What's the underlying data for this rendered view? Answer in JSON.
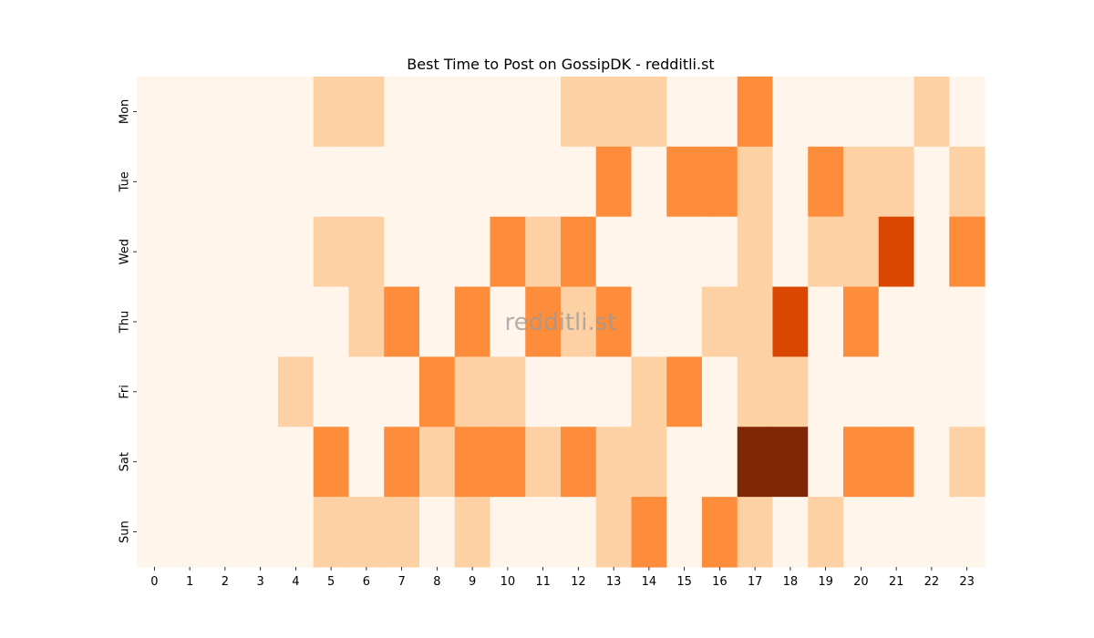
{
  "chart_data": {
    "type": "heatmap",
    "title": "Best Time to Post on GossipDK - redditli.st",
    "watermark": "redditli.st",
    "x_labels": [
      "0",
      "1",
      "2",
      "3",
      "4",
      "5",
      "6",
      "7",
      "8",
      "9",
      "10",
      "11",
      "12",
      "13",
      "14",
      "15",
      "16",
      "17",
      "18",
      "19",
      "20",
      "21",
      "22",
      "23"
    ],
    "y_labels": [
      "Mon",
      "Tue",
      "Wed",
      "Thu",
      "Fri",
      "Sat",
      "Sun"
    ],
    "values": [
      [
        0,
        0,
        0,
        0,
        0,
        1,
        1,
        0,
        0,
        0,
        0,
        0,
        1,
        1,
        1,
        0,
        0,
        2,
        0,
        0,
        0,
        0,
        1,
        0
      ],
      [
        0,
        0,
        0,
        0,
        0,
        0,
        0,
        0,
        0,
        0,
        0,
        0,
        0,
        2,
        0,
        2,
        2,
        1,
        0,
        2,
        1,
        1,
        0,
        1
      ],
      [
        0,
        0,
        0,
        0,
        0,
        1,
        1,
        0,
        0,
        0,
        2,
        1,
        2,
        0,
        0,
        0,
        0,
        1,
        0,
        1,
        1,
        3,
        0,
        2
      ],
      [
        0,
        0,
        0,
        0,
        0,
        0,
        1,
        2,
        0,
        2,
        0,
        2,
        1,
        2,
        0,
        0,
        1,
        1,
        3,
        0,
        2,
        0,
        0,
        0
      ],
      [
        0,
        0,
        0,
        0,
        1,
        0,
        0,
        0,
        2,
        1,
        1,
        0,
        0,
        0,
        1,
        2,
        0,
        1,
        1,
        0,
        0,
        0,
        0,
        0
      ],
      [
        0,
        0,
        0,
        0,
        0,
        2,
        0,
        2,
        1,
        2,
        2,
        1,
        2,
        1,
        1,
        0,
        0,
        4,
        4,
        0,
        2,
        2,
        0,
        1
      ],
      [
        0,
        0,
        0,
        0,
        0,
        1,
        1,
        1,
        0,
        1,
        0,
        0,
        0,
        1,
        2,
        0,
        2,
        1,
        0,
        1,
        0,
        0,
        0,
        0
      ]
    ],
    "color_scale": [
      "#fff5eb",
      "#fdd1a3",
      "#fd8c3b",
      "#d94701",
      "#7f2704"
    ],
    "vmin": 0,
    "vmax": 4,
    "colorbar": false,
    "grid": false
  }
}
